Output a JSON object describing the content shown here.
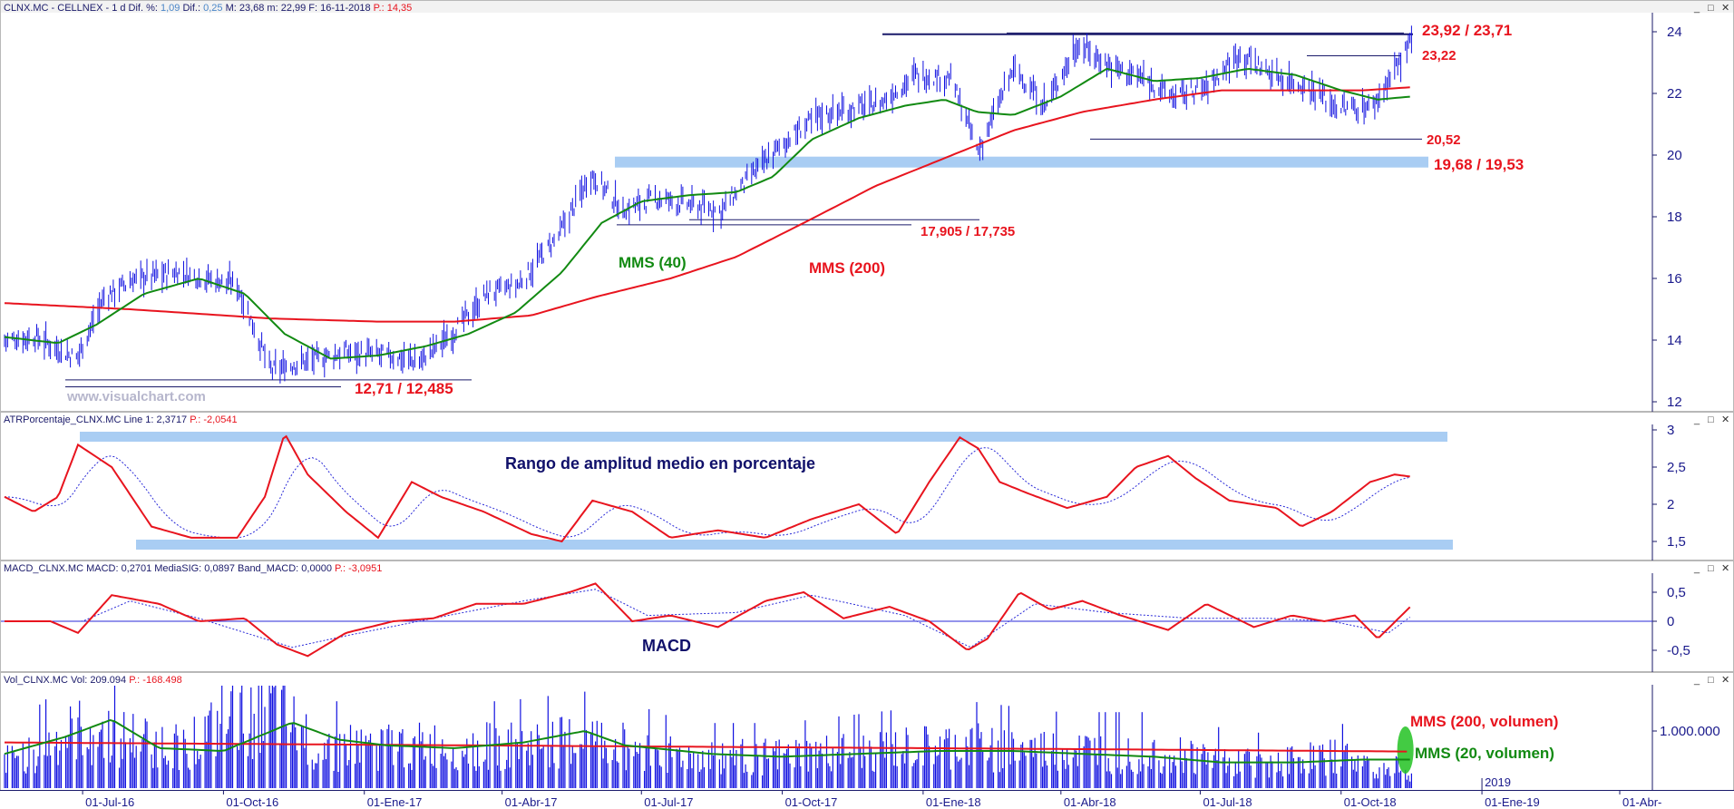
{
  "headers": {
    "price": [
      {
        "text": "CLNX.MC - CELLNEX - 1 d Dif. %: ",
        "color": "#1a1a6a"
      },
      {
        "text": "1,09",
        "color": "#4a86c8"
      },
      {
        "text": " Dif.: ",
        "color": "#1a1a6a"
      },
      {
        "text": "0,25",
        "color": "#4a86c8"
      },
      {
        "text": " M: 23,68 m: 22,99 F: 16-11-2018 ",
        "color": "#1a1a6a"
      },
      {
        "text": "P.: 14,35",
        "color": "#e8141e"
      }
    ],
    "atr": [
      {
        "text": "ATRPorcentaje_CLNX.MC Line 1: 2,3717 ",
        "color": "#1a1a6a"
      },
      {
        "text": "P.: -2,0541",
        "color": "#e8141e"
      }
    ],
    "macd": [
      {
        "text": "MACD_CLNX.MC MACD: 0,2701 MediaSIG: 0,0897 Band_MACD: 0,0000 ",
        "color": "#1a1a6a"
      },
      {
        "text": "P.: -3,0951",
        "color": "#e8141e"
      }
    ],
    "vol": [
      {
        "text": "Vol_CLNX.MC Vol: 209.094 ",
        "color": "#1a1a6a"
      },
      {
        "text": "P.: -168.498",
        "color": "#e8141e"
      }
    ]
  },
  "window_buttons": [
    "_",
    "□",
    "✕"
  ],
  "watermark": "www.visualchart.com",
  "annotations": {
    "level_top": "23,92 / 23,71",
    "level_2322": "23,22",
    "level_2052": "20,52",
    "level_1968": "19,68 / 19,53",
    "level_17905": "17,905 / 17,735",
    "level_1271": "12,71 / 12,485",
    "mms40": "MMS (40)",
    "mms200": "MMS (200)",
    "atr_label": "Rango de amplitud medio en porcentaje",
    "macd_label": "MACD",
    "vol_mms200": "MMS (200, volumen)",
    "vol_mms20": "MMS (20, volumen)"
  },
  "colors": {
    "price_bars": "#1010e0",
    "mms40": "#128a12",
    "mms200": "#e8141e",
    "band": "#a9cdf3",
    "level_line": "#1a1a6a",
    "annotation": "#e8141e",
    "volume_bars": "#1010e0",
    "volume_highlight": "#22c222"
  },
  "chart_data": [
    {
      "type": "line",
      "title": "CLNX.MC - CELLNEX - 1 d",
      "y_axis_ticks": [
        "12",
        "14",
        "16",
        "18",
        "20",
        "22",
        "24"
      ],
      "x_axis_ticks": [
        "01-Jul-16",
        "01-Oct-16",
        "01-Ene-17",
        "01-Abr-17",
        "01-Jul-17",
        "01-Oct-17",
        "01-Ene-18",
        "01-Abr-18",
        "01-Jul-18",
        "01-Oct-18",
        "2019",
        "01-Ene-19",
        "01-Abr-"
      ],
      "ylim": [
        11.8,
        24.6
      ],
      "legend": "none",
      "series": [
        {
          "name": "Price (daily bars)",
          "x": [
            "2016-05-11",
            "2016-06-01",
            "2016-06-27",
            "2016-07-15",
            "2016-08-05",
            "2016-09-01",
            "2016-09-20",
            "2016-10-10",
            "2016-11-01",
            "2016-11-22",
            "2016-12-20",
            "2017-01-16",
            "2017-02-06",
            "2017-03-01",
            "2017-03-22",
            "2017-04-12",
            "2017-05-08",
            "2017-05-29",
            "2017-06-19",
            "2017-07-10",
            "2017-08-01",
            "2017-08-22",
            "2017-09-12",
            "2017-10-02",
            "2017-10-25",
            "2017-11-15",
            "2017-12-05",
            "2017-12-27",
            "2018-01-19",
            "2018-02-06",
            "2018-03-01",
            "2018-03-22",
            "2018-04-12",
            "2018-05-03",
            "2018-05-24",
            "2018-06-14",
            "2018-07-05",
            "2018-07-27",
            "2018-08-17",
            "2018-09-10",
            "2018-10-01",
            "2018-10-22",
            "2018-11-16"
          ],
          "values": [
            14.0,
            14.1,
            13.4,
            15.4,
            16.0,
            16.2,
            16.0,
            15.8,
            13.0,
            13.3,
            13.6,
            13.5,
            13.3,
            14.3,
            15.5,
            15.8,
            17.4,
            19.4,
            18.2,
            18.6,
            18.4,
            18.2,
            19.4,
            20.4,
            21.3,
            21.5,
            21.7,
            22.6,
            22.5,
            20.1,
            22.8,
            21.6,
            23.6,
            22.9,
            22.5,
            21.9,
            22.2,
            23.3,
            22.6,
            22.2,
            21.5,
            21.6,
            23.68
          ]
        },
        {
          "name": "MMS (40)",
          "x": [
            "2016-05-11",
            "2016-06-15",
            "2016-07-10",
            "2016-08-10",
            "2016-09-15",
            "2016-10-15",
            "2016-11-10",
            "2016-12-10",
            "2017-01-10",
            "2017-02-10",
            "2017-03-10",
            "2017-04-10",
            "2017-05-10",
            "2017-06-05",
            "2017-07-01",
            "2017-08-01",
            "2017-09-01",
            "2017-09-25",
            "2017-10-20",
            "2017-11-20",
            "2017-12-20",
            "2018-01-15",
            "2018-02-05",
            "2018-03-01",
            "2018-04-01",
            "2018-05-01",
            "2018-06-01",
            "2018-07-01",
            "2018-08-01",
            "2018-09-01",
            "2018-10-01",
            "2018-10-25",
            "2018-11-16"
          ],
          "values": [
            14.1,
            13.9,
            14.5,
            15.5,
            16.0,
            15.5,
            14.2,
            13.4,
            13.5,
            13.8,
            14.2,
            14.9,
            16.2,
            17.8,
            18.5,
            18.7,
            18.8,
            19.3,
            20.5,
            21.2,
            21.6,
            21.8,
            21.4,
            21.3,
            21.9,
            22.8,
            22.4,
            22.5,
            22.8,
            22.6,
            22.1,
            21.8,
            21.9
          ]
        },
        {
          "name": "MMS (200)",
          "x": [
            "2016-05-11",
            "2016-08-01",
            "2016-11-01",
            "2017-01-10",
            "2017-03-01",
            "2017-04-20",
            "2017-06-01",
            "2017-07-20",
            "2017-09-01",
            "2017-10-15",
            "2017-12-01",
            "2018-01-15",
            "2018-03-01",
            "2018-04-15",
            "2018-06-01",
            "2018-07-15",
            "2018-09-01",
            "2018-10-15",
            "2018-11-16"
          ],
          "values": [
            15.2,
            15.0,
            14.7,
            14.6,
            14.6,
            14.8,
            15.4,
            16.0,
            16.7,
            17.8,
            19.0,
            19.9,
            20.8,
            21.4,
            21.8,
            22.1,
            22.1,
            22.1,
            22.2
          ]
        }
      ],
      "annotations": [
        "23,92 / 23,71",
        "23,22",
        "20,52",
        "19,68 / 19,53",
        "17,905 / 17,735",
        "12,71 / 12,485",
        "MMS (40)",
        "MMS (200)"
      ]
    },
    {
      "type": "line",
      "title": "ATRPorcentaje_CLNX.MC",
      "y_axis_ticks": [
        "1,5",
        "2",
        "2,5",
        "3"
      ],
      "ylim": [
        1.3,
        3.05
      ],
      "series": [
        {
          "name": "Line 1",
          "x": [
            "2016-05-11",
            "2016-05-30",
            "2016-06-15",
            "2016-06-28",
            "2016-07-20",
            "2016-08-15",
            "2016-09-10",
            "2016-10-10",
            "2016-10-28",
            "2016-11-10",
            "2016-11-25",
            "2016-12-20",
            "2017-01-10",
            "2017-02-01",
            "2017-02-20",
            "2017-03-20",
            "2017-04-20",
            "2017-05-10",
            "2017-05-30",
            "2017-06-25",
            "2017-07-20",
            "2017-08-20",
            "2017-09-20",
            "2017-10-20",
            "2017-11-20",
            "2017-12-15",
            "2018-01-05",
            "2018-01-25",
            "2018-02-06",
            "2018-02-20",
            "2018-03-10",
            "2018-04-05",
            "2018-05-01",
            "2018-05-20",
            "2018-06-10",
            "2018-06-28",
            "2018-07-20",
            "2018-08-20",
            "2018-09-05",
            "2018-09-25",
            "2018-10-20",
            "2018-11-05",
            "2018-11-16"
          ],
          "values": [
            2.1,
            1.9,
            2.1,
            2.8,
            2.5,
            1.7,
            1.55,
            1.55,
            2.1,
            2.95,
            2.4,
            1.9,
            1.55,
            2.3,
            2.1,
            1.9,
            1.6,
            1.5,
            2.05,
            1.9,
            1.55,
            1.65,
            1.55,
            1.8,
            2.0,
            1.6,
            2.3,
            2.9,
            2.75,
            2.3,
            2.15,
            1.95,
            2.1,
            2.5,
            2.65,
            2.35,
            2.05,
            1.95,
            1.7,
            1.9,
            2.3,
            2.4,
            2.37
          ]
        }
      ],
      "annotations": [
        "Rango de amplitud medio en porcentaje"
      ]
    },
    {
      "type": "line",
      "title": "MACD_CLNX.MC",
      "y_axis_ticks": [
        "0,5",
        "0",
        "-0,5"
      ],
      "ylim": [
        -0.8,
        0.8
      ],
      "series": [
        {
          "name": "MACD",
          "x": [
            "2016-05-11",
            "2016-06-10",
            "2016-06-28",
            "2016-07-20",
            "2016-08-20",
            "2016-09-15",
            "2016-10-15",
            "2016-11-05",
            "2016-11-25",
            "2016-12-20",
            "2017-01-20",
            "2017-02-15",
            "2017-03-15",
            "2017-04-15",
            "2017-05-15",
            "2017-06-01",
            "2017-06-25",
            "2017-07-20",
            "2017-08-20",
            "2017-09-20",
            "2017-10-15",
            "2017-11-10",
            "2017-12-10",
            "2018-01-05",
            "2018-01-30",
            "2018-02-12",
            "2018-03-05",
            "2018-03-25",
            "2018-04-15",
            "2018-05-10",
            "2018-06-10",
            "2018-07-05",
            "2018-08-05",
            "2018-08-30",
            "2018-09-20",
            "2018-10-10",
            "2018-10-25",
            "2018-11-16"
          ],
          "values": [
            0.0,
            0.0,
            -0.2,
            0.45,
            0.3,
            0.0,
            0.05,
            -0.4,
            -0.6,
            -0.2,
            0.0,
            0.05,
            0.3,
            0.3,
            0.5,
            0.65,
            0.0,
            0.1,
            -0.1,
            0.35,
            0.5,
            0.05,
            0.25,
            0.0,
            -0.5,
            -0.3,
            0.5,
            0.2,
            0.35,
            0.1,
            -0.15,
            0.3,
            -0.1,
            0.1,
            0.0,
            0.1,
            -0.3,
            0.27
          ]
        },
        {
          "name": "MediaSIG",
          "x": [
            "2016-05-11",
            "2016-07-01",
            "2016-08-01",
            "2016-09-15",
            "2016-11-15",
            "2016-12-20",
            "2017-02-15",
            "2017-04-15",
            "2017-06-01",
            "2017-07-05",
            "2017-09-01",
            "2017-10-20",
            "2017-12-20",
            "2018-02-01",
            "2018-03-15",
            "2018-05-01",
            "2018-06-25",
            "2018-08-15",
            "2018-09-25",
            "2018-11-01",
            "2018-11-16"
          ],
          "values": [
            0.0,
            0.0,
            0.35,
            0.05,
            -0.45,
            -0.25,
            0.05,
            0.35,
            0.55,
            0.1,
            0.15,
            0.45,
            0.1,
            -0.45,
            0.3,
            0.15,
            0.05,
            0.05,
            0.0,
            -0.2,
            0.09
          ]
        }
      ],
      "annotations": [
        "MACD"
      ]
    },
    {
      "type": "bar",
      "title": "Vol_CLNX.MC",
      "y_axis_ticks": [
        "1.000.000"
      ],
      "ylim": [
        0,
        1800000
      ],
      "series": [
        {
          "name": "Vol",
          "x": [
            "2016-05-11",
            "2016-07-01",
            "2016-09-01",
            "2016-11-01",
            "2016-12-01",
            "2017-02-01",
            "2017-04-01",
            "2017-06-01",
            "2017-08-01",
            "2017-10-01",
            "2017-12-01",
            "2018-02-01",
            "2018-04-01",
            "2018-06-01",
            "2018-08-01",
            "2018-10-01",
            "2018-11-16"
          ],
          "values": [
            500000,
            1100000,
            800000,
            1500000,
            800000,
            800000,
            800000,
            900000,
            600000,
            600000,
            700000,
            800000,
            700000,
            700000,
            500000,
            600000,
            209094
          ]
        },
        {
          "name": "MMS (200, volumen)",
          "x": [
            "2016-05-11",
            "2017-05-01",
            "2018-05-01",
            "2018-11-16"
          ],
          "values": [
            800000,
            740000,
            680000,
            640000
          ]
        },
        {
          "name": "MMS (20, volumen)",
          "x": [
            "2016-05-11",
            "2016-06-20",
            "2016-07-20",
            "2016-08-20",
            "2016-10-01",
            "2016-11-15",
            "2016-12-15",
            "2017-01-15",
            "2017-03-01",
            "2017-04-15",
            "2017-05-25",
            "2017-06-20",
            "2017-08-15",
            "2017-10-01",
            "2017-11-20",
            "2018-01-10",
            "2018-03-01",
            "2018-04-15",
            "2018-06-01",
            "2018-07-15",
            "2018-09-01",
            "2018-10-15",
            "2018-11-16"
          ],
          "values": [
            600000,
            900000,
            1200000,
            700000,
            650000,
            1150000,
            850000,
            750000,
            700000,
            800000,
            1000000,
            750000,
            600000,
            550000,
            600000,
            650000,
            650000,
            600000,
            550000,
            450000,
            450000,
            500000,
            500000
          ]
        }
      ],
      "annotations": [
        "MMS (200, volumen)",
        "MMS (20, volumen)"
      ]
    }
  ]
}
